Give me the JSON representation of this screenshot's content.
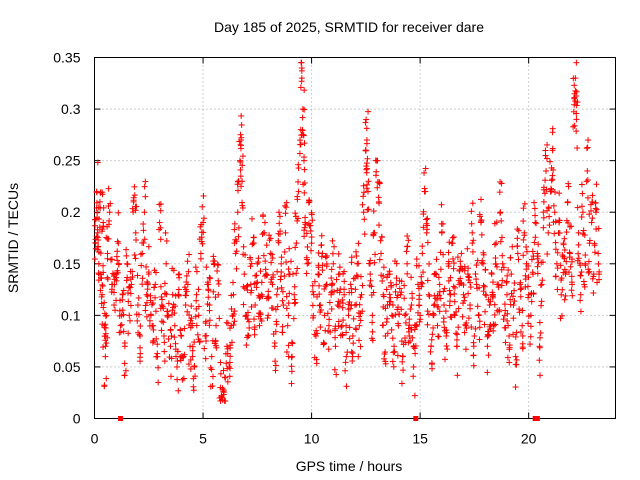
{
  "chart_data": {
    "type": "scatter",
    "title": "Day 185 of 2025, SRMTID for receiver dare",
    "xlabel": "GPS time / hours",
    "ylabel": "SRMTID / TECUs",
    "xlim": [
      0,
      24
    ],
    "ylim": [
      0,
      0.35
    ],
    "xticks": [
      0,
      5,
      10,
      15,
      20
    ],
    "xtick_labels": [
      "0",
      "5",
      "10",
      "15",
      "20"
    ],
    "yticks": [
      0,
      0.05,
      0.1,
      0.15,
      0.2,
      0.25,
      0.3,
      0.35
    ],
    "ytick_labels": [
      "0",
      "0.05",
      "0.1",
      "0.15",
      "0.2",
      "0.25",
      "0.3",
      "0.35"
    ],
    "grid": true,
    "marker": "+",
    "color": "#ff0000",
    "series": [
      {
        "name": "SRMTID",
        "points": [
          [
            0.05,
            0.17
          ],
          [
            0.1,
            0.22
          ],
          [
            0.15,
            0.18
          ],
          [
            0.2,
            0.15
          ],
          [
            0.25,
            0.21
          ],
          [
            0.3,
            0.14
          ],
          [
            0.35,
            0.12
          ],
          [
            0.4,
            0.19
          ],
          [
            0.45,
            0.09
          ],
          [
            0.5,
            0.06
          ],
          [
            0.55,
            0.1
          ],
          [
            0.6,
            0.16
          ],
          [
            0.7,
            0.2
          ],
          [
            0.8,
            0.13
          ],
          [
            0.9,
            0.11
          ],
          [
            1.0,
            0.14
          ],
          [
            1.1,
            0.17
          ],
          [
            1.2,
            0.09
          ],
          [
            1.3,
            0.12
          ],
          [
            1.4,
            0.07
          ],
          [
            1.5,
            0.15
          ],
          [
            1.6,
            0.1
          ],
          [
            1.7,
            0.13
          ],
          [
            1.8,
            0.21
          ],
          [
            1.9,
            0.18
          ],
          [
            2.0,
            0.11
          ],
          [
            2.1,
            0.08
          ],
          [
            2.2,
            0.16
          ],
          [
            2.3,
            0.2
          ],
          [
            2.4,
            0.12
          ],
          [
            2.5,
            0.14
          ],
          [
            2.6,
            0.1
          ],
          [
            2.7,
            0.09
          ],
          [
            2.8,
            0.13
          ],
          [
            2.9,
            0.06
          ],
          [
            3.0,
            0.19
          ],
          [
            3.1,
            0.11
          ],
          [
            3.2,
            0.08
          ],
          [
            3.3,
            0.15
          ],
          [
            3.4,
            0.1
          ],
          [
            3.5,
            0.07
          ],
          [
            3.6,
            0.12
          ],
          [
            3.7,
            0.09
          ],
          [
            3.8,
            0.05
          ],
          [
            3.9,
            0.14
          ],
          [
            4.0,
            0.08
          ],
          [
            4.1,
            0.06
          ],
          [
            4.2,
            0.11
          ],
          [
            4.3,
            0.13
          ],
          [
            4.4,
            0.07
          ],
          [
            4.5,
            0.09
          ],
          [
            4.6,
            0.05
          ],
          [
            4.7,
            0.12
          ],
          [
            4.8,
            0.1
          ],
          [
            4.9,
            0.16
          ],
          [
            5.0,
            0.19
          ],
          [
            5.1,
            0.08
          ],
          [
            5.2,
            0.13
          ],
          [
            5.3,
            0.11
          ],
          [
            5.4,
            0.06
          ],
          [
            5.5,
            0.15
          ],
          [
            5.6,
            0.09
          ],
          [
            5.7,
            0.12
          ],
          [
            5.8,
            0.03
          ],
          [
            5.9,
            0.02
          ],
          [
            6.0,
            0.04
          ],
          [
            6.1,
            0.07
          ],
          [
            6.2,
            0.05
          ],
          [
            6.3,
            0.09
          ],
          [
            6.4,
            0.12
          ],
          [
            6.5,
            0.16
          ],
          [
            6.6,
            0.2
          ],
          [
            6.7,
            0.25
          ],
          [
            6.75,
            0.27
          ],
          [
            6.8,
            0.23
          ],
          [
            6.9,
            0.14
          ],
          [
            7.0,
            0.1
          ],
          [
            7.1,
            0.08
          ],
          [
            7.2,
            0.13
          ],
          [
            7.3,
            0.17
          ],
          [
            7.4,
            0.11
          ],
          [
            7.5,
            0.15
          ],
          [
            7.6,
            0.09
          ],
          [
            7.7,
            0.12
          ],
          [
            7.8,
            0.18
          ],
          [
            7.9,
            0.14
          ],
          [
            8.0,
            0.1
          ],
          [
            8.1,
            0.16
          ],
          [
            8.2,
            0.13
          ],
          [
            8.3,
            0.07
          ],
          [
            8.4,
            0.12
          ],
          [
            8.5,
            0.2
          ],
          [
            8.6,
            0.15
          ],
          [
            8.7,
            0.11
          ],
          [
            8.8,
            0.18
          ],
          [
            8.9,
            0.09
          ],
          [
            9.0,
            0.14
          ],
          [
            9.1,
            0.06
          ],
          [
            9.2,
            0.12
          ],
          [
            9.3,
            0.17
          ],
          [
            9.4,
            0.22
          ],
          [
            9.5,
            0.28
          ],
          [
            9.55,
            0.33
          ],
          [
            9.6,
            0.3
          ],
          [
            9.65,
            0.25
          ],
          [
            9.7,
            0.19
          ],
          [
            9.8,
            0.15
          ],
          [
            9.9,
            0.21
          ],
          [
            10.0,
            0.17
          ],
          [
            10.1,
            0.12
          ],
          [
            10.2,
            0.08
          ],
          [
            10.3,
            0.14
          ],
          [
            10.4,
            0.11
          ],
          [
            10.5,
            0.16
          ],
          [
            10.6,
            0.1
          ],
          [
            10.7,
            0.13
          ],
          [
            10.8,
            0.09
          ],
          [
            10.9,
            0.12
          ],
          [
            11.0,
            0.15
          ],
          [
            11.1,
            0.07
          ],
          [
            11.2,
            0.11
          ],
          [
            11.3,
            0.14
          ],
          [
            11.4,
            0.09
          ],
          [
            11.5,
            0.12
          ],
          [
            11.6,
            0.06
          ],
          [
            11.7,
            0.1
          ],
          [
            11.8,
            0.13
          ],
          [
            11.9,
            0.08
          ],
          [
            12.0,
            0.11
          ],
          [
            12.1,
            0.15
          ],
          [
            12.2,
            0.09
          ],
          [
            12.3,
            0.12
          ],
          [
            12.4,
            0.2
          ],
          [
            12.5,
            0.26
          ],
          [
            12.55,
            0.27
          ],
          [
            12.6,
            0.22
          ],
          [
            12.7,
            0.14
          ],
          [
            12.8,
            0.1
          ],
          [
            12.9,
            0.18
          ],
          [
            13.0,
            0.25
          ],
          [
            13.1,
            0.21
          ],
          [
            13.2,
            0.16
          ],
          [
            13.3,
            0.12
          ],
          [
            13.4,
            0.08
          ],
          [
            13.5,
            0.11
          ],
          [
            13.6,
            0.14
          ],
          [
            13.7,
            0.1
          ],
          [
            13.8,
            0.07
          ],
          [
            13.9,
            0.13
          ],
          [
            14.0,
            0.09
          ],
          [
            14.1,
            0.12
          ],
          [
            14.2,
            0.06
          ],
          [
            14.3,
            0.1
          ],
          [
            14.4,
            0.15
          ],
          [
            14.5,
            0.08
          ],
          [
            14.6,
            0.11
          ],
          [
            14.7,
            0.05
          ],
          [
            14.8,
            0.09
          ],
          [
            14.9,
            0.13
          ],
          [
            15.0,
            0.1
          ],
          [
            15.1,
            0.16
          ],
          [
            15.2,
            0.22
          ],
          [
            15.3,
            0.18
          ],
          [
            15.4,
            0.12
          ],
          [
            15.5,
            0.07
          ],
          [
            15.6,
            0.1
          ],
          [
            15.7,
            0.14
          ],
          [
            15.8,
            0.09
          ],
          [
            15.9,
            0.13
          ],
          [
            16.0,
            0.18
          ],
          [
            16.1,
            0.11
          ],
          [
            16.2,
            0.08
          ],
          [
            16.3,
            0.15
          ],
          [
            16.4,
            0.12
          ],
          [
            16.5,
            0.17
          ],
          [
            16.6,
            0.1
          ],
          [
            16.7,
            0.07
          ],
          [
            16.8,
            0.13
          ],
          [
            16.9,
            0.16
          ],
          [
            17.0,
            0.12
          ],
          [
            17.1,
            0.09
          ],
          [
            17.2,
            0.14
          ],
          [
            17.3,
            0.11
          ],
          [
            17.4,
            0.18
          ],
          [
            17.5,
            0.08
          ],
          [
            17.6,
            0.13
          ],
          [
            17.7,
            0.1
          ],
          [
            17.8,
            0.19
          ],
          [
            17.9,
            0.15
          ],
          [
            18.0,
            0.12
          ],
          [
            18.1,
            0.07
          ],
          [
            18.2,
            0.11
          ],
          [
            18.3,
            0.14
          ],
          [
            18.4,
            0.09
          ],
          [
            18.5,
            0.17
          ],
          [
            18.6,
            0.13
          ],
          [
            18.7,
            0.2
          ],
          [
            18.8,
            0.15
          ],
          [
            18.9,
            0.1
          ],
          [
            19.0,
            0.12
          ],
          [
            19.1,
            0.08
          ],
          [
            19.2,
            0.14
          ],
          [
            19.3,
            0.11
          ],
          [
            19.4,
            0.06
          ],
          [
            19.5,
            0.16
          ],
          [
            19.6,
            0.13
          ],
          [
            19.7,
            0.09
          ],
          [
            19.8,
            0.18
          ],
          [
            19.9,
            0.15
          ],
          [
            20.0,
            0.12
          ],
          [
            20.1,
            0.1
          ],
          [
            20.2,
            0.14
          ],
          [
            20.3,
            0.19
          ],
          [
            20.4,
            0.16
          ],
          [
            20.5,
            0.07
          ],
          [
            20.6,
            0.13
          ],
          [
            20.7,
            0.21
          ],
          [
            20.8,
            0.24
          ],
          [
            20.9,
            0.18
          ],
          [
            21.0,
            0.22
          ],
          [
            21.1,
            0.26
          ],
          [
            21.2,
            0.2
          ],
          [
            21.3,
            0.15
          ],
          [
            21.4,
            0.19
          ],
          [
            21.5,
            0.12
          ],
          [
            21.6,
            0.17
          ],
          [
            21.7,
            0.14
          ],
          [
            21.8,
            0.21
          ],
          [
            21.9,
            0.16
          ],
          [
            22.0,
            0.13
          ],
          [
            22.1,
            0.31
          ],
          [
            22.15,
            0.33
          ],
          [
            22.2,
            0.29
          ],
          [
            22.3,
            0.18
          ],
          [
            22.4,
            0.12
          ],
          [
            22.5,
            0.2
          ],
          [
            22.6,
            0.15
          ],
          [
            22.7,
            0.24
          ],
          [
            22.8,
            0.17
          ],
          [
            22.9,
            0.19
          ],
          [
            23.0,
            0.14
          ],
          [
            23.1,
            0.2
          ],
          [
            23.2,
            0.16
          ]
        ]
      }
    ],
    "zero_markers": [
      1.2,
      14.8,
      20.3,
      20.4
    ]
  }
}
